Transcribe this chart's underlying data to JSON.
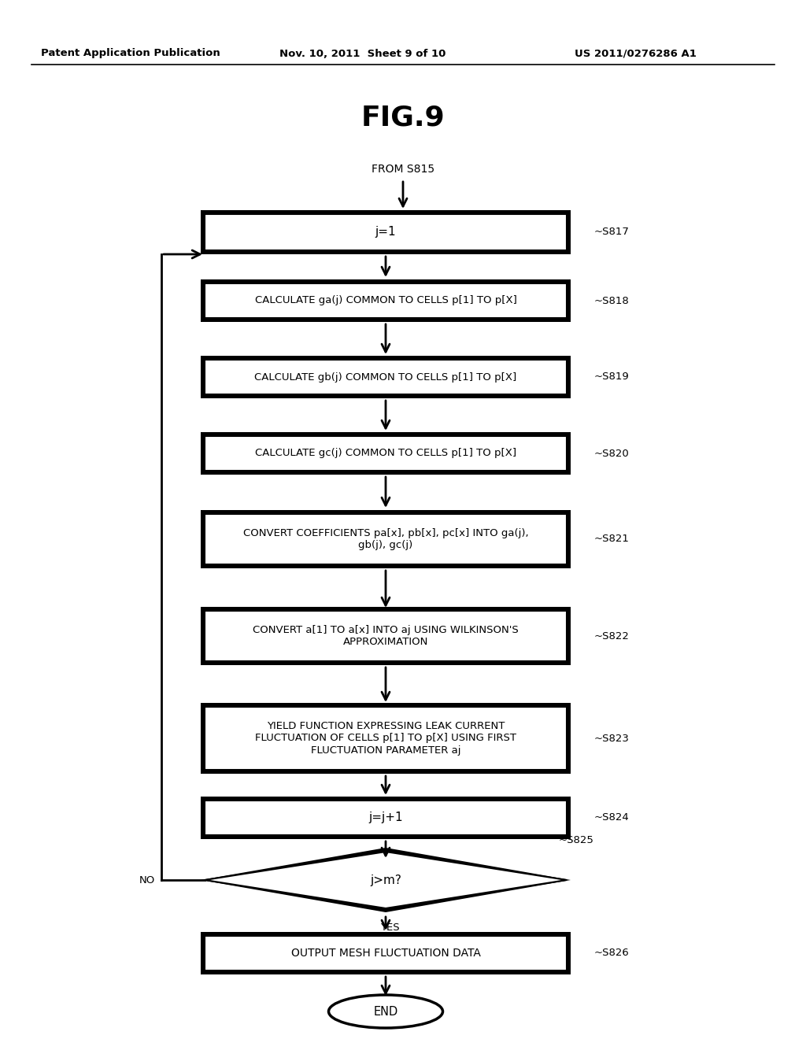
{
  "title": "FIG.9",
  "header_left": "Patent Application Publication",
  "header_mid": "Nov. 10, 2011  Sheet 9 of 10",
  "header_right": "US 2011/0276286 A1",
  "from_label": "FROM S815",
  "end_label": "END",
  "s817_label": "j=1",
  "s818_label": "CALCULATE ga(j) COMMON TO CELLS p[1] TO p[X]",
  "s819_label": "CALCULATE gb(j) COMMON TO CELLS p[1] TO p[X]",
  "s820_label": "CALCULATE gc(j) COMMON TO CELLS p[1] TO p[X]",
  "s821_label": "CONVERT COEFFICIENTS pa[x], pb[x], pc[x] INTO ga(j),\ngb(j), gc(j)",
  "s822_label": "CONVERT a[1] TO a[x] INTO aj USING WILKINSON'S\nAPPROXIMATION",
  "s823_label": "YIELD FUNCTION EXPRESSING LEAK CURRENT\nFLUCTUATION OF CELLS p[1] TO p[X] USING FIRST\nFLUCTUATION PARAMETER aj",
  "s824_label": "j=j+1",
  "s825_label": "j>m?",
  "s826_label": "OUTPUT MESH FLUCTUATION DATA",
  "bg_color": "#ffffff",
  "text_color": "#000000"
}
